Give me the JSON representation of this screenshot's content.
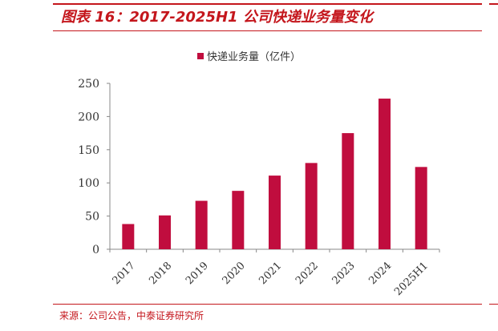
{
  "figure": {
    "title": "图表 16：2017-2025H1 公司快递业务量变化",
    "source": "来源：公司公告，中泰证券研究所"
  },
  "colors": {
    "accent": "#c4161c",
    "bar": "#c00d3e"
  },
  "chart_data": {
    "type": "bar",
    "title": "",
    "xlabel": "",
    "ylabel": "",
    "categories": [
      "2017",
      "2018",
      "2019",
      "2020",
      "2021",
      "2022",
      "2023",
      "2024",
      "2025H1"
    ],
    "series": [
      {
        "name": "快递业务量（亿件）",
        "values": [
          38,
          51,
          73,
          88,
          111,
          130,
          175,
          227,
          124
        ]
      }
    ],
    "ylim": [
      0,
      250
    ],
    "yticks": [
      0,
      50,
      100,
      150,
      200,
      250
    ],
    "grid": false,
    "legend_position": "top-center"
  }
}
